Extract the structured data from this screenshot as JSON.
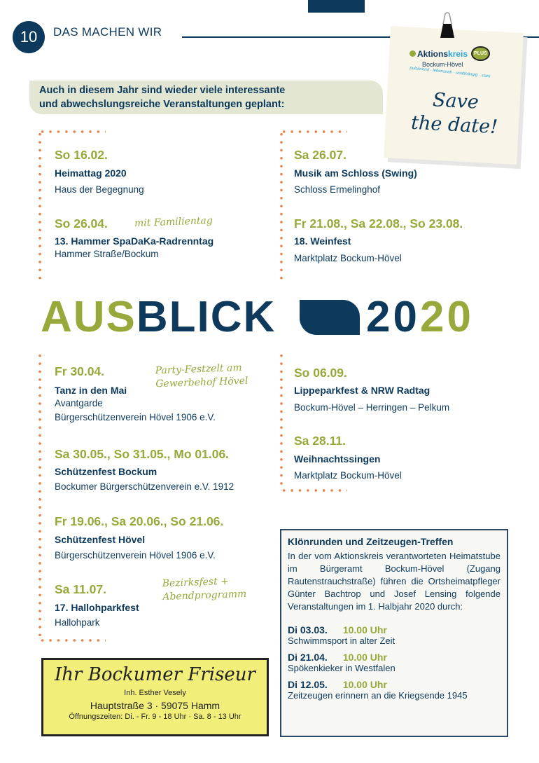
{
  "header": {
    "page_number": "10",
    "section": "DAS MACHEN WIR"
  },
  "note": {
    "logo_main": "Aktions",
    "logo_accent": "kreis",
    "logo_plus": "PLUS",
    "logo_sub": "Bockum-Hövel",
    "logo_tagline": "pulsierend · lebensnah · unabhängig · stark",
    "line1": "Save",
    "line2": "the date!"
  },
  "intro": {
    "line1": "Auch in diesem Jahr sind wieder viele interessante",
    "line2": "und abwechslungsreiche Veranstaltungen geplant:"
  },
  "headline": {
    "part1": "AUS",
    "part2": "BLICK",
    "year1": "20",
    "year2": "2",
    "year3": "0"
  },
  "events": [
    {
      "date": "So 16.02.",
      "title": "Heimattag 2020",
      "place": "Haus der Begegnung"
    },
    {
      "date": "So 26.04.",
      "note": "mit Familientag",
      "title": "13. Hammer SpaDaKa-Radrenntag",
      "place": "Hammer Straße/Bockum"
    },
    {
      "date": "Sa 26.07.",
      "title": "Musik am Schloss (Swing)",
      "place": "Schloss Ermelinghof"
    },
    {
      "date": "Fr 21.08., Sa 22.08., So 23.08.",
      "title": "18. Weinfest",
      "place": "Marktplatz Bockum-Hövel"
    },
    {
      "date": "Fr 30.04.",
      "note1": "Party-Festzelt am",
      "note2": "Gewerbehof Hövel",
      "title": "Tanz in den Mai",
      "place": "Avantgarde",
      "place2": "Bürgerschützenverein Hövel 1906 e.V."
    },
    {
      "date": "Sa 30.05., So 31.05., Mo 01.06.",
      "title": "Schützenfest Bockum",
      "place": "Bockumer Bürgerschützenverein e.V. 1912"
    },
    {
      "date": "Fr 19.06., Sa 20.06., So 21.06.",
      "title": "Schützenfest Hövel",
      "place": "Bürgerschützenverein Hövel 1906 e.V."
    },
    {
      "date": "Sa 11.07.",
      "note1": "Bezirksfest +",
      "note2": "Abendprogramm",
      "title": "17. Hallohparkfest",
      "place": "Hallohpark"
    },
    {
      "date": "So 06.09.",
      "title": "Lippeparkfest & NRW Radtag",
      "place": "Bockum-Hövel – Herringen – Pelkum"
    },
    {
      "date": "Sa 28.11.",
      "title": "Weihnachtssingen",
      "place": "Marktplatz Bockum-Hövel"
    }
  ],
  "box": {
    "title": "Klönrunden und Zeitzeugen-Treffen",
    "text": "In der vom Aktionskreis verantworteten Heimatstube im Bürgeramt Bockum-Hövel (Zugang Rautenstrauchstraße) führen die Ortsheimatpfleger Günter Bachtrop und Josef Lensing folgende Veranstaltungen im 1. Halbjahr 2020 durch:",
    "items": [
      {
        "date": "Di 03.03.",
        "time": "10.00 Uhr",
        "topic": "Schwimmsport in alter Zeit"
      },
      {
        "date": "Di 21.04.",
        "time": "10.00 Uhr",
        "topic": "Spökenkieker in Westfalen"
      },
      {
        "date": "Di 12.05.",
        "time": "10.00 Uhr",
        "topic": "Zeitzeugen erinnern an die Kriegsende 1945"
      }
    ]
  },
  "ad": {
    "title": "Ihr Bockumer Friseur",
    "owner": "Inh. Esther Vesely",
    "address": "Hauptstraße 3 · 59075 Hamm",
    "hours": "Öffnungszeiten: Di. - Fr. 9 - 18 Uhr · Sa. 8 - 13 Uhr"
  },
  "colors": {
    "navy": "#0d3a5c",
    "green": "#98a83a",
    "orange": "#e8804a",
    "ad_yellow": "#f1ee7a"
  }
}
